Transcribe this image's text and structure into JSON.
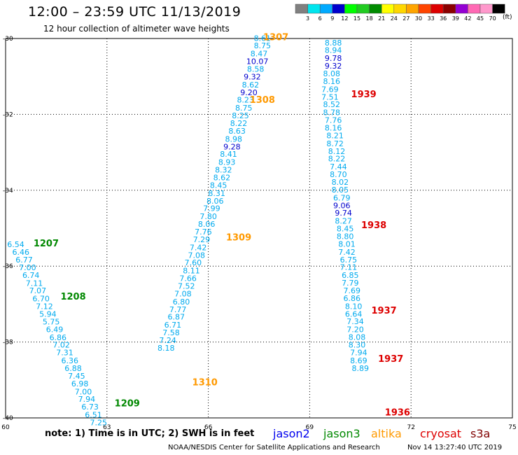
{
  "header": {
    "title": "12:00 – 23:59 UTC 11/13/2019",
    "subtitle": "12 hour collection of altimeter wave heights"
  },
  "footer": {
    "note": "note:  1) Time is in UTC; 2) SWH is in feet",
    "credit": "NOAA/NESDIS Center for Satellite Applications and Research",
    "timestamp": "Nov 14 13:27:40 UTC 2019"
  },
  "legend": [
    {
      "label": "jason2",
      "color": "#0000ee"
    },
    {
      "label": "jason3",
      "color": "#008800"
    },
    {
      "label": "altika",
      "color": "#ff9900"
    },
    {
      "label": "cryosat",
      "color": "#dd0000"
    },
    {
      "label": "s3a",
      "color": "#800000"
    }
  ],
  "colorbar": {
    "unit": "(ft)",
    "ticks": [
      "3",
      "6",
      "9",
      "12",
      "15",
      "18",
      "21",
      "24",
      "27",
      "30",
      "33",
      "36",
      "39",
      "42",
      "45",
      "70"
    ],
    "colors": [
      "#808080",
      "#00e5ee",
      "#00aaff",
      "#0000cd",
      "#00ff00",
      "#22cc22",
      "#008b00",
      "#ffff00",
      "#ffd700",
      "#ffa500",
      "#ff4500",
      "#dd0000",
      "#8b0000",
      "#9400d3",
      "#ff69b4",
      "#ff99cc",
      "#000000"
    ]
  },
  "chart_data": {
    "type": "scatter",
    "xlim": [
      60,
      75
    ],
    "ylim": [
      -40,
      -30
    ],
    "x_ticks": [
      60,
      63,
      66,
      69,
      72,
      75
    ],
    "y_ticks": [
      -30,
      -32,
      -34,
      -36,
      -38,
      -40
    ],
    "grid": true,
    "tracks": [
      {
        "pass_labels": [
          {
            "text": "1207",
            "color": "#008800",
            "x": 61.2,
            "y": -35.48
          },
          {
            "text": "1208",
            "color": "#008800",
            "x": 62.0,
            "y": -36.88
          },
          {
            "text": "1209",
            "color": "#008800",
            "x": 63.6,
            "y": -39.7
          }
        ],
        "points": [
          {
            "x": 60.3,
            "y": -35.5,
            "v": "6.54"
          },
          {
            "x": 60.45,
            "y": -35.7,
            "v": "6.46"
          },
          {
            "x": 60.55,
            "y": -35.9,
            "v": "6.77"
          },
          {
            "x": 60.65,
            "y": -36.11,
            "v": "7.00"
          },
          {
            "x": 60.75,
            "y": -36.31,
            "v": "6.74"
          },
          {
            "x": 60.85,
            "y": -36.52,
            "v": "7.11"
          },
          {
            "x": 60.95,
            "y": -36.72,
            "v": "7.07"
          },
          {
            "x": 61.05,
            "y": -36.93,
            "v": "6.70"
          },
          {
            "x": 61.15,
            "y": -37.13,
            "v": "7.12"
          },
          {
            "x": 61.25,
            "y": -37.33,
            "v": "5.94"
          },
          {
            "x": 61.35,
            "y": -37.54,
            "v": "5.75"
          },
          {
            "x": 61.45,
            "y": -37.74,
            "v": "6.49"
          },
          {
            "x": 61.55,
            "y": -37.95,
            "v": "6.86"
          },
          {
            "x": 61.65,
            "y": -38.15,
            "v": "7.02"
          },
          {
            "x": 61.75,
            "y": -38.35,
            "v": "7.31"
          },
          {
            "x": 61.9,
            "y": -38.56,
            "v": "6.36"
          },
          {
            "x": 62.0,
            "y": -38.76,
            "v": "6.88"
          },
          {
            "x": 62.1,
            "y": -38.97,
            "v": "7.45"
          },
          {
            "x": 62.2,
            "y": -39.17,
            "v": "6.98"
          },
          {
            "x": 62.3,
            "y": -39.38,
            "v": "7.00"
          },
          {
            "x": 62.4,
            "y": -39.58,
            "v": "7.94"
          },
          {
            "x": 62.5,
            "y": -39.78,
            "v": "6.73"
          },
          {
            "x": 62.6,
            "y": -39.99,
            "v": "6.51"
          },
          {
            "x": 62.75,
            "y": -40.19,
            "v": "7.25"
          }
        ]
      },
      {
        "pass_labels": [
          {
            "text": "1307",
            "color": "#ff9900",
            "x": 68.0,
            "y": -30.05
          },
          {
            "text": "1308",
            "color": "#ff9900",
            "x": 67.6,
            "y": -31.7
          },
          {
            "text": "1309",
            "color": "#ff9900",
            "x": 66.9,
            "y": -35.32
          },
          {
            "text": "1310",
            "color": "#ff9900",
            "x": 65.9,
            "y": -39.14
          }
        ],
        "points": [
          {
            "x": 67.6,
            "y": -30.06,
            "v": "8.61"
          },
          {
            "x": 67.6,
            "y": -30.26,
            "v": "8.75"
          },
          {
            "x": 67.5,
            "y": -30.47,
            "v": "8.47"
          },
          {
            "x": 67.45,
            "y": -30.67,
            "v": "10.07",
            "c": "#0000cd"
          },
          {
            "x": 67.4,
            "y": -30.88,
            "v": "8.58"
          },
          {
            "x": 67.3,
            "y": -31.08,
            "v": "9.32",
            "c": "#0000cd"
          },
          {
            "x": 67.25,
            "y": -31.29,
            "v": "8.62"
          },
          {
            "x": 67.2,
            "y": -31.49,
            "v": "9.20",
            "c": "#0000cd"
          },
          {
            "x": 67.1,
            "y": -31.69,
            "v": "8.23"
          },
          {
            "x": 67.05,
            "y": -31.9,
            "v": "8.75"
          },
          {
            "x": 66.95,
            "y": -32.1,
            "v": "8.25"
          },
          {
            "x": 66.9,
            "y": -32.31,
            "v": "8.22"
          },
          {
            "x": 66.85,
            "y": -32.51,
            "v": "8.63"
          },
          {
            "x": 66.75,
            "y": -32.72,
            "v": "8.98"
          },
          {
            "x": 66.7,
            "y": -32.92,
            "v": "9.28",
            "c": "#0000cd"
          },
          {
            "x": 66.6,
            "y": -33.12,
            "v": "8.41"
          },
          {
            "x": 66.55,
            "y": -33.33,
            "v": "8.93"
          },
          {
            "x": 66.45,
            "y": -33.53,
            "v": "8.32"
          },
          {
            "x": 66.4,
            "y": -33.74,
            "v": "8.62"
          },
          {
            "x": 66.3,
            "y": -33.94,
            "v": "8.45"
          },
          {
            "x": 66.25,
            "y": -34.15,
            "v": "8.31"
          },
          {
            "x": 66.2,
            "y": -34.35,
            "v": "8.06"
          },
          {
            "x": 66.1,
            "y": -34.55,
            "v": "7.99"
          },
          {
            "x": 66.0,
            "y": -34.76,
            "v": "7.80"
          },
          {
            "x": 65.95,
            "y": -34.96,
            "v": "8.06"
          },
          {
            "x": 65.85,
            "y": -35.17,
            "v": "7.76"
          },
          {
            "x": 65.8,
            "y": -35.37,
            "v": "7.29"
          },
          {
            "x": 65.7,
            "y": -35.58,
            "v": "7.42"
          },
          {
            "x": 65.65,
            "y": -35.78,
            "v": "7.08"
          },
          {
            "x": 65.55,
            "y": -35.98,
            "v": "7.60"
          },
          {
            "x": 65.5,
            "y": -36.19,
            "v": "8.11"
          },
          {
            "x": 65.4,
            "y": -36.39,
            "v": "7.66"
          },
          {
            "x": 65.35,
            "y": -36.6,
            "v": "7.52"
          },
          {
            "x": 65.25,
            "y": -36.8,
            "v": "7.08"
          },
          {
            "x": 65.2,
            "y": -37.01,
            "v": "6.80"
          },
          {
            "x": 65.1,
            "y": -37.21,
            "v": "7.77"
          },
          {
            "x": 65.05,
            "y": -37.41,
            "v": "6.87"
          },
          {
            "x": 64.95,
            "y": -37.62,
            "v": "6.71"
          },
          {
            "x": 64.9,
            "y": -37.82,
            "v": "7.58"
          },
          {
            "x": 64.8,
            "y": -38.03,
            "v": "7.24"
          },
          {
            "x": 64.75,
            "y": -38.23,
            "v": "8.18"
          }
        ]
      },
      {
        "pass_labels": [
          {
            "text": "1939",
            "color": "#dd0000",
            "x": 70.6,
            "y": -31.55
          },
          {
            "text": "1938",
            "color": "#dd0000",
            "x": 70.9,
            "y": -35.0
          },
          {
            "text": "1937",
            "color": "#dd0000",
            "x": 71.2,
            "y": -37.25
          },
          {
            "text": "1937",
            "color": "#dd0000",
            "x": 71.4,
            "y": -38.52
          },
          {
            "text": "1936",
            "color": "#dd0000",
            "x": 71.6,
            "y": -39.94
          }
        ],
        "points": [
          {
            "x": 69.7,
            "y": -30.18,
            "v": "8.88"
          },
          {
            "x": 69.7,
            "y": -30.38,
            "v": "8.94"
          },
          {
            "x": 69.7,
            "y": -30.59,
            "v": "9.78",
            "c": "#0000cd"
          },
          {
            "x": 69.7,
            "y": -30.79,
            "v": "9.32",
            "c": "#0000cd"
          },
          {
            "x": 69.65,
            "y": -31.0,
            "v": "8.08"
          },
          {
            "x": 69.65,
            "y": -31.2,
            "v": "8.16"
          },
          {
            "x": 69.6,
            "y": -31.41,
            "v": "7.69"
          },
          {
            "x": 69.6,
            "y": -31.61,
            "v": "7.51"
          },
          {
            "x": 69.65,
            "y": -31.81,
            "v": "8.52"
          },
          {
            "x": 69.65,
            "y": -32.02,
            "v": "8.78"
          },
          {
            "x": 69.7,
            "y": -32.22,
            "v": "7.76"
          },
          {
            "x": 69.7,
            "y": -32.43,
            "v": "8.16"
          },
          {
            "x": 69.75,
            "y": -32.63,
            "v": "8.21"
          },
          {
            "x": 69.75,
            "y": -32.84,
            "v": "8.72"
          },
          {
            "x": 69.8,
            "y": -33.04,
            "v": "8.12"
          },
          {
            "x": 69.8,
            "y": -33.24,
            "v": "8.22"
          },
          {
            "x": 69.85,
            "y": -33.45,
            "v": "7.44"
          },
          {
            "x": 69.85,
            "y": -33.65,
            "v": "8.70"
          },
          {
            "x": 69.9,
            "y": -33.86,
            "v": "8.02"
          },
          {
            "x": 69.9,
            "y": -34.06,
            "v": "8.05"
          },
          {
            "x": 69.95,
            "y": -34.27,
            "v": "6.79"
          },
          {
            "x": 69.95,
            "y": -34.47,
            "v": "9.06",
            "c": "#0000cd"
          },
          {
            "x": 70.0,
            "y": -34.67,
            "v": "9.74",
            "c": "#0000cd"
          },
          {
            "x": 70.0,
            "y": -34.88,
            "v": "8.27"
          },
          {
            "x": 70.05,
            "y": -35.08,
            "v": "8.45"
          },
          {
            "x": 70.05,
            "y": -35.29,
            "v": "8.80"
          },
          {
            "x": 70.1,
            "y": -35.49,
            "v": "8.01"
          },
          {
            "x": 70.1,
            "y": -35.7,
            "v": "7.42"
          },
          {
            "x": 70.15,
            "y": -35.9,
            "v": "6.75"
          },
          {
            "x": 70.15,
            "y": -36.1,
            "v": "7.11"
          },
          {
            "x": 70.2,
            "y": -36.31,
            "v": "6.85"
          },
          {
            "x": 70.2,
            "y": -36.51,
            "v": "7.79"
          },
          {
            "x": 70.25,
            "y": -36.72,
            "v": "7.69"
          },
          {
            "x": 70.25,
            "y": -36.92,
            "v": "6.86"
          },
          {
            "x": 70.3,
            "y": -37.13,
            "v": "8.10"
          },
          {
            "x": 70.3,
            "y": -37.33,
            "v": "6.64"
          },
          {
            "x": 70.35,
            "y": -37.53,
            "v": "7.34"
          },
          {
            "x": 70.35,
            "y": -37.74,
            "v": "7.20"
          },
          {
            "x": 70.4,
            "y": -37.94,
            "v": "8.08"
          },
          {
            "x": 70.4,
            "y": -38.15,
            "v": "8.30"
          },
          {
            "x": 70.45,
            "y": -38.35,
            "v": "7.94"
          },
          {
            "x": 70.45,
            "y": -38.56,
            "v": "8.69"
          },
          {
            "x": 70.5,
            "y": -38.76,
            "v": "8.89"
          }
        ]
      }
    ]
  }
}
